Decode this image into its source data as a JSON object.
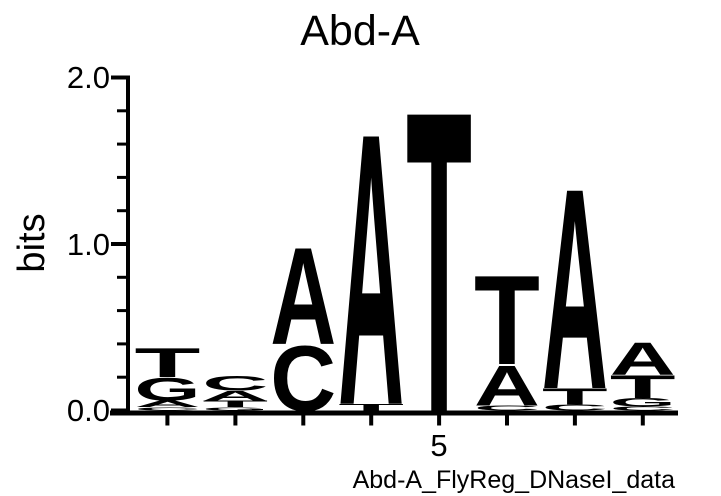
{
  "title": "Abd-A",
  "y_axis": {
    "label": "bits",
    "tick_labels": [
      "2.0",
      "1.0",
      "0.0"
    ]
  },
  "x_axis": {
    "tick_label": "5"
  },
  "caption": "Abd-A_FlyReg_DNaseI_data",
  "colors": {
    "A": "#008000",
    "C": "#0000EE",
    "G": "#FFA500",
    "T": "#EE0000"
  },
  "chart_data": {
    "type": "sequence_logo",
    "title": "Abd-A",
    "ylabel": "bits",
    "ylim": [
      0,
      2.0
    ],
    "y_major_ticks": [
      0.0,
      1.0,
      2.0
    ],
    "y_minor_tick_step": 0.2,
    "num_positions": 8,
    "x_labeled_position": 5,
    "positions": [
      {
        "position": 1,
        "stack": [
          {
            "base": "C",
            "bits": 0.02
          },
          {
            "base": "A",
            "bits": 0.04
          },
          {
            "base": "G",
            "bits": 0.14
          },
          {
            "base": "T",
            "bits": 0.18
          }
        ]
      },
      {
        "position": 2,
        "stack": [
          {
            "base": "G",
            "bits": 0.02
          },
          {
            "base": "T",
            "bits": 0.04
          },
          {
            "base": "A",
            "bits": 0.06
          },
          {
            "base": "C",
            "bits": 0.09
          }
        ]
      },
      {
        "position": 3,
        "stack": [
          {
            "base": "C",
            "bits": 0.4
          },
          {
            "base": "A",
            "bits": 0.6
          }
        ]
      },
      {
        "position": 4,
        "stack": [
          {
            "base": "T",
            "bits": 0.04
          },
          {
            "base": "A",
            "bits": 1.68
          }
        ]
      },
      {
        "position": 5,
        "stack": [
          {
            "base": "T",
            "bits": 1.86
          }
        ]
      },
      {
        "position": 6,
        "stack": [
          {
            "base": "C",
            "bits": 0.03
          },
          {
            "base": "A",
            "bits": 0.25
          },
          {
            "base": "T",
            "bits": 0.55
          }
        ]
      },
      {
        "position": 7,
        "stack": [
          {
            "base": "C",
            "bits": 0.035
          },
          {
            "base": "T",
            "bits": 0.1
          },
          {
            "base": "A",
            "bits": 1.24
          }
        ]
      },
      {
        "position": 8,
        "stack": [
          {
            "base": "C",
            "bits": 0.025
          },
          {
            "base": "G",
            "bits": 0.05
          },
          {
            "base": "T",
            "bits": 0.14
          },
          {
            "base": "A",
            "bits": 0.2
          }
        ]
      }
    ]
  }
}
